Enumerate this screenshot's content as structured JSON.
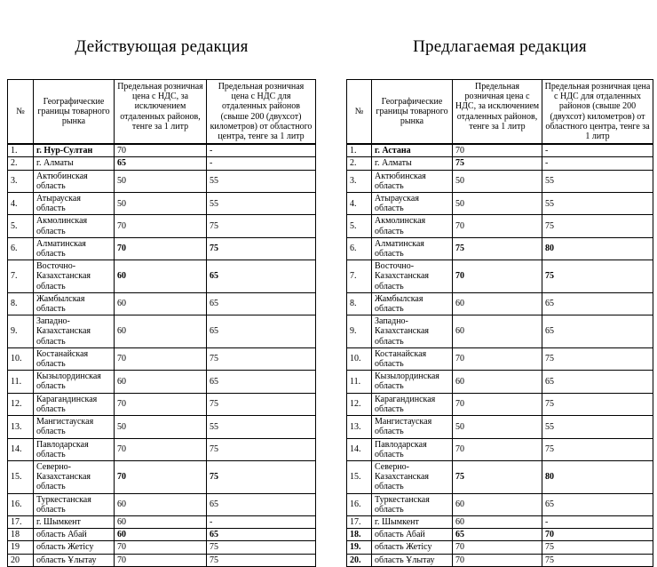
{
  "page": {
    "background": "#ffffff",
    "text_color": "#000000",
    "border_color": "#000000"
  },
  "tables": [
    {
      "title": "Действующая редакция",
      "columns": [
        "№",
        "Географические границы товарного рынка",
        "Предельная розничная цена с НДС, за исключением отдаленных районов, тенге за 1 литр",
        "Предельная розничная цена с НДС для отдаленных районов (свыше 200 (двухсот) километров) от областного центра, тенге за 1 литр"
      ],
      "rows": [
        {
          "cells": [
            {
              "t": "1.",
              "b": false
            },
            {
              "t": "г. Нур-Султан",
              "b": true
            },
            {
              "t": "70",
              "b": false
            },
            {
              "t": "-",
              "b": false
            }
          ]
        },
        {
          "cells": [
            {
              "t": "2.",
              "b": false
            },
            {
              "t": "г. Алматы",
              "b": false
            },
            {
              "t": "65",
              "b": true
            },
            {
              "t": "-",
              "b": false
            }
          ]
        },
        {
          "cells": [
            {
              "t": "3.",
              "b": false
            },
            {
              "t": "Актюбинская область",
              "b": false
            },
            {
              "t": "50",
              "b": false
            },
            {
              "t": "55",
              "b": false
            }
          ]
        },
        {
          "cells": [
            {
              "t": "4.",
              "b": false
            },
            {
              "t": "Атырауская область",
              "b": false
            },
            {
              "t": "50",
              "b": false
            },
            {
              "t": "55",
              "b": false
            }
          ]
        },
        {
          "cells": [
            {
              "t": "5.",
              "b": false
            },
            {
              "t": "Акмолинская область",
              "b": false
            },
            {
              "t": "70",
              "b": false
            },
            {
              "t": "75",
              "b": false
            }
          ]
        },
        {
          "cells": [
            {
              "t": "6.",
              "b": false
            },
            {
              "t": "Алматинская область",
              "b": false
            },
            {
              "t": "70",
              "b": true
            },
            {
              "t": "75",
              "b": true
            }
          ]
        },
        {
          "cells": [
            {
              "t": "7.",
              "b": false
            },
            {
              "t": "Восточно-Казахстанская область",
              "b": false
            },
            {
              "t": "60",
              "b": true
            },
            {
              "t": "65",
              "b": true
            }
          ]
        },
        {
          "cells": [
            {
              "t": "8.",
              "b": false
            },
            {
              "t": "Жамбылская область",
              "b": false
            },
            {
              "t": "60",
              "b": false
            },
            {
              "t": "65",
              "b": false
            }
          ]
        },
        {
          "cells": [
            {
              "t": "9.",
              "b": false
            },
            {
              "t": "Западно-Казахстанская область",
              "b": false
            },
            {
              "t": "60",
              "b": false
            },
            {
              "t": "65",
              "b": false
            }
          ]
        },
        {
          "cells": [
            {
              "t": "10.",
              "b": false
            },
            {
              "t": "Костанайская область",
              "b": false
            },
            {
              "t": "70",
              "b": false
            },
            {
              "t": "75",
              "b": false
            }
          ]
        },
        {
          "cells": [
            {
              "t": "11.",
              "b": false
            },
            {
              "t": "Кызылординская область",
              "b": false
            },
            {
              "t": "60",
              "b": false
            },
            {
              "t": "65",
              "b": false
            }
          ]
        },
        {
          "cells": [
            {
              "t": "12.",
              "b": false
            },
            {
              "t": "Карагандинская область",
              "b": false
            },
            {
              "t": "70",
              "b": false
            },
            {
              "t": "75",
              "b": false
            }
          ]
        },
        {
          "cells": [
            {
              "t": "13.",
              "b": false
            },
            {
              "t": "Мангистауская область",
              "b": false
            },
            {
              "t": "50",
              "b": false
            },
            {
              "t": "55",
              "b": false
            }
          ]
        },
        {
          "cells": [
            {
              "t": "14.",
              "b": false
            },
            {
              "t": "Павлодарская область",
              "b": false
            },
            {
              "t": "70",
              "b": false
            },
            {
              "t": "75",
              "b": false
            }
          ]
        },
        {
          "cells": [
            {
              "t": "15.",
              "b": false
            },
            {
              "t": "Северно-Казахстанская область",
              "b": false
            },
            {
              "t": "70",
              "b": true
            },
            {
              "t": "75",
              "b": true
            }
          ]
        },
        {
          "cells": [
            {
              "t": "16.",
              "b": false
            },
            {
              "t": "Туркестанская область",
              "b": false
            },
            {
              "t": "60",
              "b": false
            },
            {
              "t": "65",
              "b": false
            }
          ]
        },
        {
          "cells": [
            {
              "t": "17.",
              "b": false
            },
            {
              "t": "г. Шымкент",
              "b": false
            },
            {
              "t": "60",
              "b": false
            },
            {
              "t": "-",
              "b": false
            }
          ]
        },
        {
          "cells": [
            {
              "t": "18",
              "b": false
            },
            {
              "t": "область Абай",
              "b": false
            },
            {
              "t": "60",
              "b": true
            },
            {
              "t": "65",
              "b": true
            }
          ]
        },
        {
          "cells": [
            {
              "t": "19",
              "b": false
            },
            {
              "t": "область Жетісу",
              "b": false
            },
            {
              "t": "70",
              "b": false
            },
            {
              "t": "75",
              "b": false
            }
          ]
        },
        {
          "cells": [
            {
              "t": "20",
              "b": false
            },
            {
              "t": "область Ұлытау",
              "b": false
            },
            {
              "t": "70",
              "b": false
            },
            {
              "t": "75",
              "b": false
            }
          ]
        }
      ]
    },
    {
      "title": "Предлагаемая редакция",
      "columns": [
        "№",
        "Географические границы товарного рынка",
        "Предельная розничная цена с НДС, за исключением отдаленных районов, тенге за 1 литр",
        "Предельная розничная цена с НДС для отдаленных районов (свыше 200 (двухсот) километров) от областного центра, тенге за 1 литр"
      ],
      "rows": [
        {
          "cells": [
            {
              "t": "1.",
              "b": false
            },
            {
              "t": "г. Астана",
              "b": true
            },
            {
              "t": "70",
              "b": false
            },
            {
              "t": "-",
              "b": false
            }
          ]
        },
        {
          "cells": [
            {
              "t": "2.",
              "b": false
            },
            {
              "t": "г. Алматы",
              "b": false
            },
            {
              "t": "75",
              "b": true
            },
            {
              "t": "-",
              "b": false
            }
          ]
        },
        {
          "cells": [
            {
              "t": "3.",
              "b": false
            },
            {
              "t": "Актюбинская область",
              "b": false
            },
            {
              "t": "50",
              "b": false
            },
            {
              "t": "55",
              "b": false
            }
          ]
        },
        {
          "cells": [
            {
              "t": "4.",
              "b": false
            },
            {
              "t": "Атырауская область",
              "b": false
            },
            {
              "t": "50",
              "b": false
            },
            {
              "t": "55",
              "b": false
            }
          ]
        },
        {
          "cells": [
            {
              "t": "5.",
              "b": false
            },
            {
              "t": "Акмолинская область",
              "b": false
            },
            {
              "t": "70",
              "b": false
            },
            {
              "t": "75",
              "b": false
            }
          ]
        },
        {
          "cells": [
            {
              "t": "6.",
              "b": false
            },
            {
              "t": "Алматинская область",
              "b": false
            },
            {
              "t": "75",
              "b": true
            },
            {
              "t": "80",
              "b": true
            }
          ]
        },
        {
          "cells": [
            {
              "t": "7.",
              "b": false
            },
            {
              "t": "Восточно-Казахстанская область",
              "b": false
            },
            {
              "t": "70",
              "b": true
            },
            {
              "t": "75",
              "b": true
            }
          ]
        },
        {
          "cells": [
            {
              "t": "8.",
              "b": false
            },
            {
              "t": "Жамбылская область",
              "b": false
            },
            {
              "t": "60",
              "b": false
            },
            {
              "t": "65",
              "b": false
            }
          ]
        },
        {
          "cells": [
            {
              "t": "9.",
              "b": false
            },
            {
              "t": "Западно-Казахстанская область",
              "b": false
            },
            {
              "t": "60",
              "b": false
            },
            {
              "t": "65",
              "b": false
            }
          ]
        },
        {
          "cells": [
            {
              "t": "10.",
              "b": false
            },
            {
              "t": "Костанайская область",
              "b": false
            },
            {
              "t": "70",
              "b": false
            },
            {
              "t": "75",
              "b": false
            }
          ]
        },
        {
          "cells": [
            {
              "t": "11.",
              "b": false
            },
            {
              "t": "Кызылординская область",
              "b": false
            },
            {
              "t": "60",
              "b": false
            },
            {
              "t": "65",
              "b": false
            }
          ]
        },
        {
          "cells": [
            {
              "t": "12.",
              "b": false
            },
            {
              "t": "Карагандинская область",
              "b": false
            },
            {
              "t": "70",
              "b": false
            },
            {
              "t": "75",
              "b": false
            }
          ]
        },
        {
          "cells": [
            {
              "t": "13.",
              "b": false
            },
            {
              "t": "Мангистауская область",
              "b": false
            },
            {
              "t": "50",
              "b": false
            },
            {
              "t": "55",
              "b": false
            }
          ]
        },
        {
          "cells": [
            {
              "t": "14.",
              "b": false
            },
            {
              "t": "Павлодарская область",
              "b": false
            },
            {
              "t": "70",
              "b": false
            },
            {
              "t": "75",
              "b": false
            }
          ]
        },
        {
          "cells": [
            {
              "t": "15.",
              "b": false
            },
            {
              "t": "Северно-Казахстанская область",
              "b": false
            },
            {
              "t": "75",
              "b": true
            },
            {
              "t": "80",
              "b": true
            }
          ]
        },
        {
          "cells": [
            {
              "t": "16.",
              "b": false
            },
            {
              "t": "Туркестанская область",
              "b": false
            },
            {
              "t": "60",
              "b": false
            },
            {
              "t": "65",
              "b": false
            }
          ]
        },
        {
          "cells": [
            {
              "t": "17.",
              "b": false
            },
            {
              "t": "г. Шымкент",
              "b": false
            },
            {
              "t": "60",
              "b": false
            },
            {
              "t": "-",
              "b": false
            }
          ]
        },
        {
          "cells": [
            {
              "t": "18.",
              "b": true
            },
            {
              "t": "область Абай",
              "b": false
            },
            {
              "t": "65",
              "b": true
            },
            {
              "t": "70",
              "b": true
            }
          ]
        },
        {
          "cells": [
            {
              "t": "19.",
              "b": true
            },
            {
              "t": "область Жетісу",
              "b": false
            },
            {
              "t": "70",
              "b": false
            },
            {
              "t": "75",
              "b": false
            }
          ]
        },
        {
          "cells": [
            {
              "t": "20.",
              "b": true
            },
            {
              "t": "область Ұлытау",
              "b": false
            },
            {
              "t": "70",
              "b": false
            },
            {
              "t": "75",
              "b": false
            }
          ]
        }
      ]
    }
  ]
}
